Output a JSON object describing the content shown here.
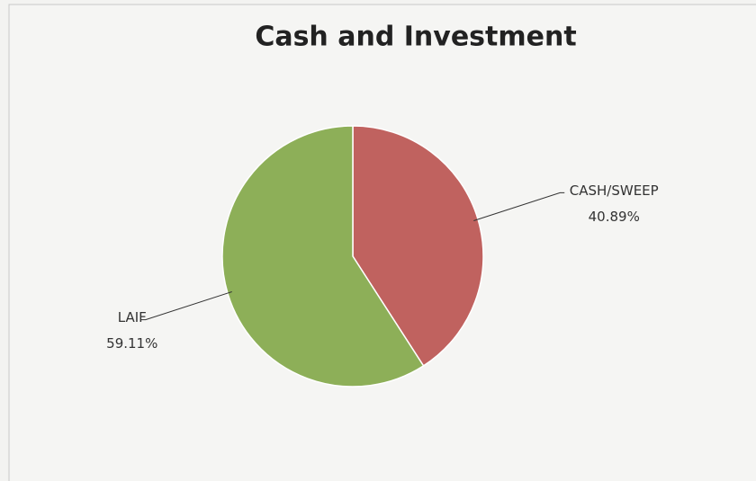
{
  "chart_data": {
    "type": "pie",
    "title": "Cash and Investment",
    "categories": [
      "CASH/SWEEP",
      "LAIF"
    ],
    "values": [
      40.89,
      59.11
    ],
    "value_labels": [
      "40.89%",
      "59.11%"
    ],
    "colors": [
      "#c0625f",
      "#8daf58"
    ]
  }
}
